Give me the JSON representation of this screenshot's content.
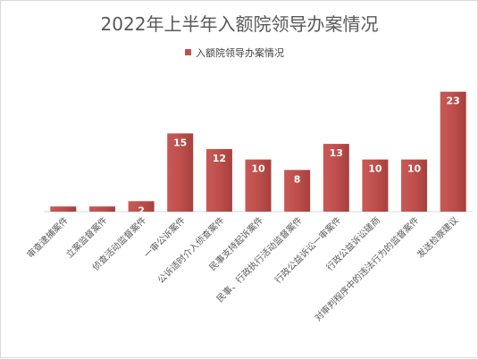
{
  "chart_data": {
    "type": "bar",
    "title": "2022年上半年入额院领导办案情况",
    "legend_position": "top",
    "grid": false,
    "ylim": [
      0,
      25
    ],
    "categories": [
      "审查逮捕案件",
      "立案监督案件",
      "侦查活动监督案件",
      "一审公诉案件",
      "公诉适时介入侦查案件",
      "民事支持起诉案件",
      "民事、行政执行活动监督案件",
      "行政公益诉讼一审案件",
      "行政公益诉讼磋商",
      "对审判程序中的违法行为的监督案件",
      "发送检察建议"
    ],
    "series": [
      {
        "name": "入额院领导办案情况",
        "color": "#c0504d",
        "values": [
          1,
          1,
          2,
          15,
          12,
          10,
          8,
          13,
          10,
          10,
          23
        ]
      }
    ]
  }
}
